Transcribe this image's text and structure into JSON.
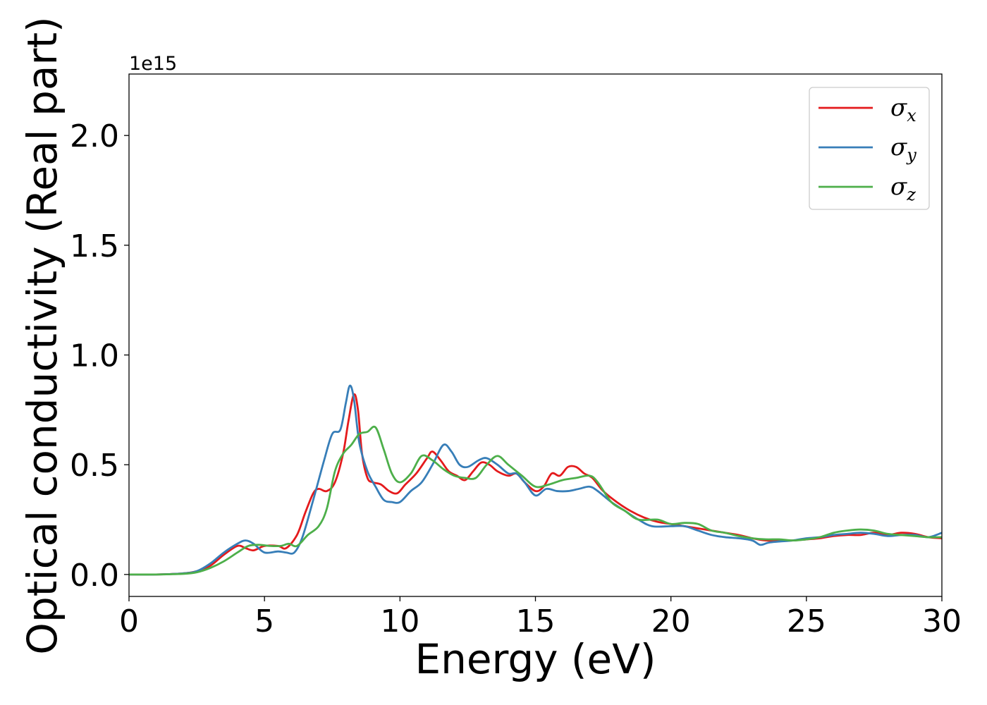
{
  "chart_data": {
    "type": "line",
    "title": "",
    "xlabel": "Energy (eV)",
    "ylabel": "Optical conductivity (Real part)",
    "y_offset_label": "1e15",
    "xlim": [
      0,
      30
    ],
    "ylim": [
      -0.1,
      2.28
    ],
    "x_ticks": [
      0,
      5,
      10,
      15,
      20,
      25,
      30
    ],
    "x_tick_labels": [
      "0",
      "5",
      "10",
      "15",
      "20",
      "25",
      "30"
    ],
    "y_ticks": [
      0.0,
      0.5,
      1.0,
      1.5,
      2.0
    ],
    "y_tick_labels": [
      "0.0",
      "0.5",
      "1.0",
      "1.5",
      "2.0"
    ],
    "grid": false,
    "legend": {
      "position": "top-right"
    },
    "series": [
      {
        "name": "σx",
        "symbol": "σ",
        "subscript": "x",
        "color": "#e41a1c",
        "points": [
          [
            0,
            0
          ],
          [
            1,
            0
          ],
          [
            2,
            0.005
          ],
          [
            2.5,
            0.015
          ],
          [
            3,
            0.04
          ],
          [
            3.5,
            0.09
          ],
          [
            4,
            0.13
          ],
          [
            4.3,
            0.12
          ],
          [
            4.6,
            0.11
          ],
          [
            5,
            0.13
          ],
          [
            5.5,
            0.13
          ],
          [
            5.8,
            0.12
          ],
          [
            6.2,
            0.18
          ],
          [
            6.5,
            0.28
          ],
          [
            6.8,
            0.37
          ],
          [
            7,
            0.39
          ],
          [
            7.3,
            0.38
          ],
          [
            7.6,
            0.42
          ],
          [
            7.9,
            0.55
          ],
          [
            8.1,
            0.7
          ],
          [
            8.3,
            0.82
          ],
          [
            8.45,
            0.75
          ],
          [
            8.6,
            0.55
          ],
          [
            8.8,
            0.44
          ],
          [
            9,
            0.42
          ],
          [
            9.3,
            0.41
          ],
          [
            9.6,
            0.38
          ],
          [
            9.9,
            0.37
          ],
          [
            10.2,
            0.41
          ],
          [
            10.6,
            0.46
          ],
          [
            11,
            0.53
          ],
          [
            11.2,
            0.56
          ],
          [
            11.5,
            0.52
          ],
          [
            11.8,
            0.47
          ],
          [
            12.1,
            0.45
          ],
          [
            12.4,
            0.43
          ],
          [
            12.7,
            0.47
          ],
          [
            13,
            0.51
          ],
          [
            13.3,
            0.5
          ],
          [
            13.6,
            0.47
          ],
          [
            14,
            0.45
          ],
          [
            14.3,
            0.46
          ],
          [
            14.6,
            0.42
          ],
          [
            15,
            0.38
          ],
          [
            15.3,
            0.4
          ],
          [
            15.6,
            0.46
          ],
          [
            15.9,
            0.45
          ],
          [
            16.2,
            0.49
          ],
          [
            16.5,
            0.49
          ],
          [
            16.8,
            0.46
          ],
          [
            17.1,
            0.44
          ],
          [
            17.5,
            0.38
          ],
          [
            18,
            0.33
          ],
          [
            18.5,
            0.29
          ],
          [
            19,
            0.26
          ],
          [
            19.5,
            0.24
          ],
          [
            20,
            0.23
          ],
          [
            20.5,
            0.22
          ],
          [
            21,
            0.21
          ],
          [
            21.5,
            0.2
          ],
          [
            22,
            0.19
          ],
          [
            22.5,
            0.18
          ],
          [
            23,
            0.165
          ],
          [
            23.5,
            0.155
          ],
          [
            24,
            0.155
          ],
          [
            24.5,
            0.155
          ],
          [
            25,
            0.16
          ],
          [
            25.5,
            0.165
          ],
          [
            26,
            0.175
          ],
          [
            26.5,
            0.18
          ],
          [
            27,
            0.18
          ],
          [
            27.5,
            0.19
          ],
          [
            28,
            0.18
          ],
          [
            28.5,
            0.19
          ],
          [
            29,
            0.185
          ],
          [
            29.5,
            0.17
          ],
          [
            30,
            0.165
          ]
        ]
      },
      {
        "name": "σy",
        "symbol": "σ",
        "subscript": "y",
        "color": "#377eb8",
        "points": [
          [
            0,
            0
          ],
          [
            1,
            0
          ],
          [
            2,
            0.005
          ],
          [
            2.5,
            0.015
          ],
          [
            3,
            0.05
          ],
          [
            3.5,
            0.1
          ],
          [
            4,
            0.14
          ],
          [
            4.3,
            0.155
          ],
          [
            4.6,
            0.14
          ],
          [
            5,
            0.1
          ],
          [
            5.5,
            0.105
          ],
          [
            5.8,
            0.1
          ],
          [
            6.1,
            0.1
          ],
          [
            6.4,
            0.17
          ],
          [
            6.8,
            0.34
          ],
          [
            7.2,
            0.52
          ],
          [
            7.5,
            0.64
          ],
          [
            7.8,
            0.66
          ],
          [
            8,
            0.78
          ],
          [
            8.15,
            0.86
          ],
          [
            8.3,
            0.8
          ],
          [
            8.5,
            0.6
          ],
          [
            8.8,
            0.47
          ],
          [
            9.1,
            0.4
          ],
          [
            9.4,
            0.34
          ],
          [
            9.7,
            0.33
          ],
          [
            10,
            0.33
          ],
          [
            10.4,
            0.38
          ],
          [
            10.8,
            0.42
          ],
          [
            11.2,
            0.5
          ],
          [
            11.6,
            0.59
          ],
          [
            11.9,
            0.56
          ],
          [
            12.2,
            0.5
          ],
          [
            12.5,
            0.49
          ],
          [
            12.9,
            0.52
          ],
          [
            13.2,
            0.53
          ],
          [
            13.6,
            0.5
          ],
          [
            14,
            0.46
          ],
          [
            14.3,
            0.46
          ],
          [
            14.6,
            0.42
          ],
          [
            15,
            0.36
          ],
          [
            15.4,
            0.39
          ],
          [
            15.8,
            0.38
          ],
          [
            16.2,
            0.38
          ],
          [
            16.6,
            0.39
          ],
          [
            17,
            0.4
          ],
          [
            17.3,
            0.38
          ],
          [
            17.8,
            0.33
          ],
          [
            18.3,
            0.29
          ],
          [
            18.8,
            0.25
          ],
          [
            19.3,
            0.22
          ],
          [
            20,
            0.22
          ],
          [
            20.5,
            0.22
          ],
          [
            21,
            0.2
          ],
          [
            21.5,
            0.18
          ],
          [
            22,
            0.17
          ],
          [
            22.5,
            0.165
          ],
          [
            23,
            0.155
          ],
          [
            23.3,
            0.135
          ],
          [
            23.6,
            0.145
          ],
          [
            24,
            0.15
          ],
          [
            24.5,
            0.155
          ],
          [
            25,
            0.165
          ],
          [
            25.5,
            0.17
          ],
          [
            26,
            0.18
          ],
          [
            26.5,
            0.185
          ],
          [
            27,
            0.19
          ],
          [
            27.5,
            0.185
          ],
          [
            28,
            0.175
          ],
          [
            28.5,
            0.18
          ],
          [
            29,
            0.18
          ],
          [
            29.5,
            0.17
          ],
          [
            30,
            0.19
          ]
        ]
      },
      {
        "name": "σz",
        "symbol": "σ",
        "subscript": "z",
        "color": "#4daf4a",
        "points": [
          [
            0,
            0
          ],
          [
            1,
            0
          ],
          [
            2,
            0.003
          ],
          [
            2.5,
            0.01
          ],
          [
            3,
            0.03
          ],
          [
            3.5,
            0.06
          ],
          [
            4,
            0.1
          ],
          [
            4.4,
            0.13
          ],
          [
            4.8,
            0.135
          ],
          [
            5.2,
            0.13
          ],
          [
            5.6,
            0.13
          ],
          [
            5.9,
            0.14
          ],
          [
            6.2,
            0.13
          ],
          [
            6.6,
            0.18
          ],
          [
            7,
            0.22
          ],
          [
            7.3,
            0.3
          ],
          [
            7.6,
            0.47
          ],
          [
            7.9,
            0.55
          ],
          [
            8.2,
            0.59
          ],
          [
            8.5,
            0.64
          ],
          [
            8.8,
            0.65
          ],
          [
            9.1,
            0.67
          ],
          [
            9.4,
            0.57
          ],
          [
            9.7,
            0.46
          ],
          [
            10,
            0.42
          ],
          [
            10.4,
            0.46
          ],
          [
            10.8,
            0.54
          ],
          [
            11.2,
            0.52
          ],
          [
            11.6,
            0.48
          ],
          [
            12,
            0.45
          ],
          [
            12.4,
            0.44
          ],
          [
            12.8,
            0.44
          ],
          [
            13.2,
            0.5
          ],
          [
            13.6,
            0.54
          ],
          [
            14,
            0.5
          ],
          [
            14.5,
            0.45
          ],
          [
            15,
            0.4
          ],
          [
            15.5,
            0.41
          ],
          [
            16,
            0.43
          ],
          [
            16.5,
            0.44
          ],
          [
            17,
            0.45
          ],
          [
            17.3,
            0.42
          ],
          [
            17.8,
            0.33
          ],
          [
            18.3,
            0.29
          ],
          [
            18.8,
            0.25
          ],
          [
            19.5,
            0.25
          ],
          [
            20,
            0.23
          ],
          [
            20.5,
            0.235
          ],
          [
            21,
            0.23
          ],
          [
            21.5,
            0.2
          ],
          [
            22,
            0.19
          ],
          [
            22.5,
            0.175
          ],
          [
            23,
            0.165
          ],
          [
            23.5,
            0.16
          ],
          [
            24,
            0.16
          ],
          [
            24.5,
            0.155
          ],
          [
            25,
            0.16
          ],
          [
            25.5,
            0.17
          ],
          [
            26,
            0.19
          ],
          [
            26.5,
            0.2
          ],
          [
            27,
            0.205
          ],
          [
            27.5,
            0.2
          ],
          [
            28,
            0.185
          ],
          [
            28.5,
            0.18
          ],
          [
            29,
            0.175
          ],
          [
            29.5,
            0.17
          ],
          [
            30,
            0.17
          ]
        ]
      }
    ]
  }
}
